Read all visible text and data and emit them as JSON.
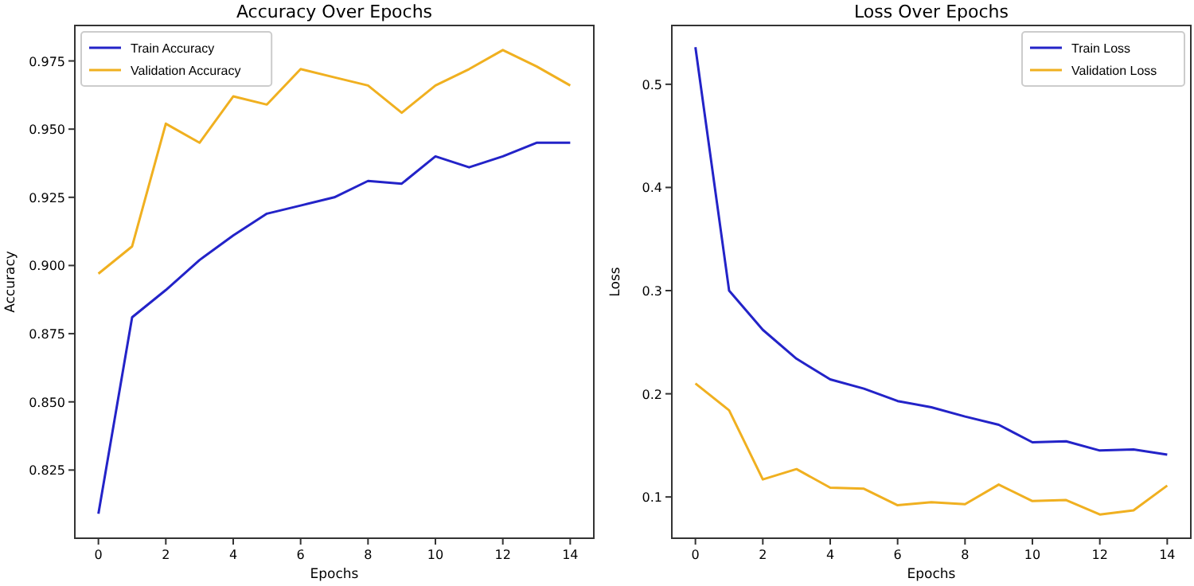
{
  "chart_data": [
    {
      "type": "line",
      "title": "Accuracy Over Epochs",
      "xlabel": "Epochs",
      "ylabel": "Accuracy",
      "x": [
        0,
        1,
        2,
        3,
        4,
        5,
        6,
        7,
        8,
        9,
        10,
        11,
        12,
        13,
        14
      ],
      "series": [
        {
          "name": "Train Accuracy",
          "color": "#2323c8",
          "values": [
            0.809,
            0.881,
            0.891,
            0.902,
            0.911,
            0.919,
            0.922,
            0.925,
            0.931,
            0.93,
            0.94,
            0.936,
            0.94,
            0.945,
            0.945
          ]
        },
        {
          "name": "Validation Accuracy",
          "color": "#f0b020",
          "values": [
            0.897,
            0.907,
            0.952,
            0.945,
            0.962,
            0.959,
            0.972,
            0.969,
            0.966,
            0.956,
            0.966,
            0.972,
            0.979,
            0.973,
            0.966
          ]
        }
      ],
      "xlim": [
        -0.7,
        14.7
      ],
      "xticks": [
        0,
        2,
        4,
        6,
        8,
        10,
        12,
        14
      ],
      "ylim": [
        0.8,
        0.988
      ],
      "yticks": [
        {
          "value": 0.825,
          "label": "0.825"
        },
        {
          "value": 0.85,
          "label": "0.850"
        },
        {
          "value": 0.875,
          "label": "0.875"
        },
        {
          "value": 0.9,
          "label": "0.900"
        },
        {
          "value": 0.925,
          "label": "0.925"
        },
        {
          "value": 0.95,
          "label": "0.950"
        },
        {
          "value": 0.975,
          "label": "0.975"
        }
      ],
      "legend": "top left",
      "grid": false,
      "marker": "none",
      "line_style": "solid"
    },
    {
      "type": "line",
      "title": "Loss Over Epochs",
      "xlabel": "Epochs",
      "ylabel": "Loss",
      "x": [
        0,
        1,
        2,
        3,
        4,
        5,
        6,
        7,
        8,
        9,
        10,
        11,
        12,
        13,
        14
      ],
      "series": [
        {
          "name": "Train Loss",
          "color": "#2323c8",
          "values": [
            0.536,
            0.3,
            0.262,
            0.234,
            0.214,
            0.205,
            0.193,
            0.187,
            0.178,
            0.17,
            0.153,
            0.154,
            0.145,
            0.146,
            0.141
          ]
        },
        {
          "name": "Validation Loss",
          "color": "#f0b020",
          "values": [
            0.21,
            0.184,
            0.117,
            0.127,
            0.109,
            0.108,
            0.092,
            0.095,
            0.093,
            0.112,
            0.096,
            0.097,
            0.083,
            0.087,
            0.111
          ]
        }
      ],
      "xlim": [
        -0.7,
        14.7
      ],
      "xticks": [
        0,
        2,
        4,
        6,
        8,
        10,
        12,
        14
      ],
      "ylim": [
        0.06,
        0.557
      ],
      "yticks": [
        0.1,
        0.2,
        0.3,
        0.4,
        0.5
      ],
      "legend": "top right",
      "grid": false,
      "marker": "none",
      "line_style": "solid"
    }
  ]
}
